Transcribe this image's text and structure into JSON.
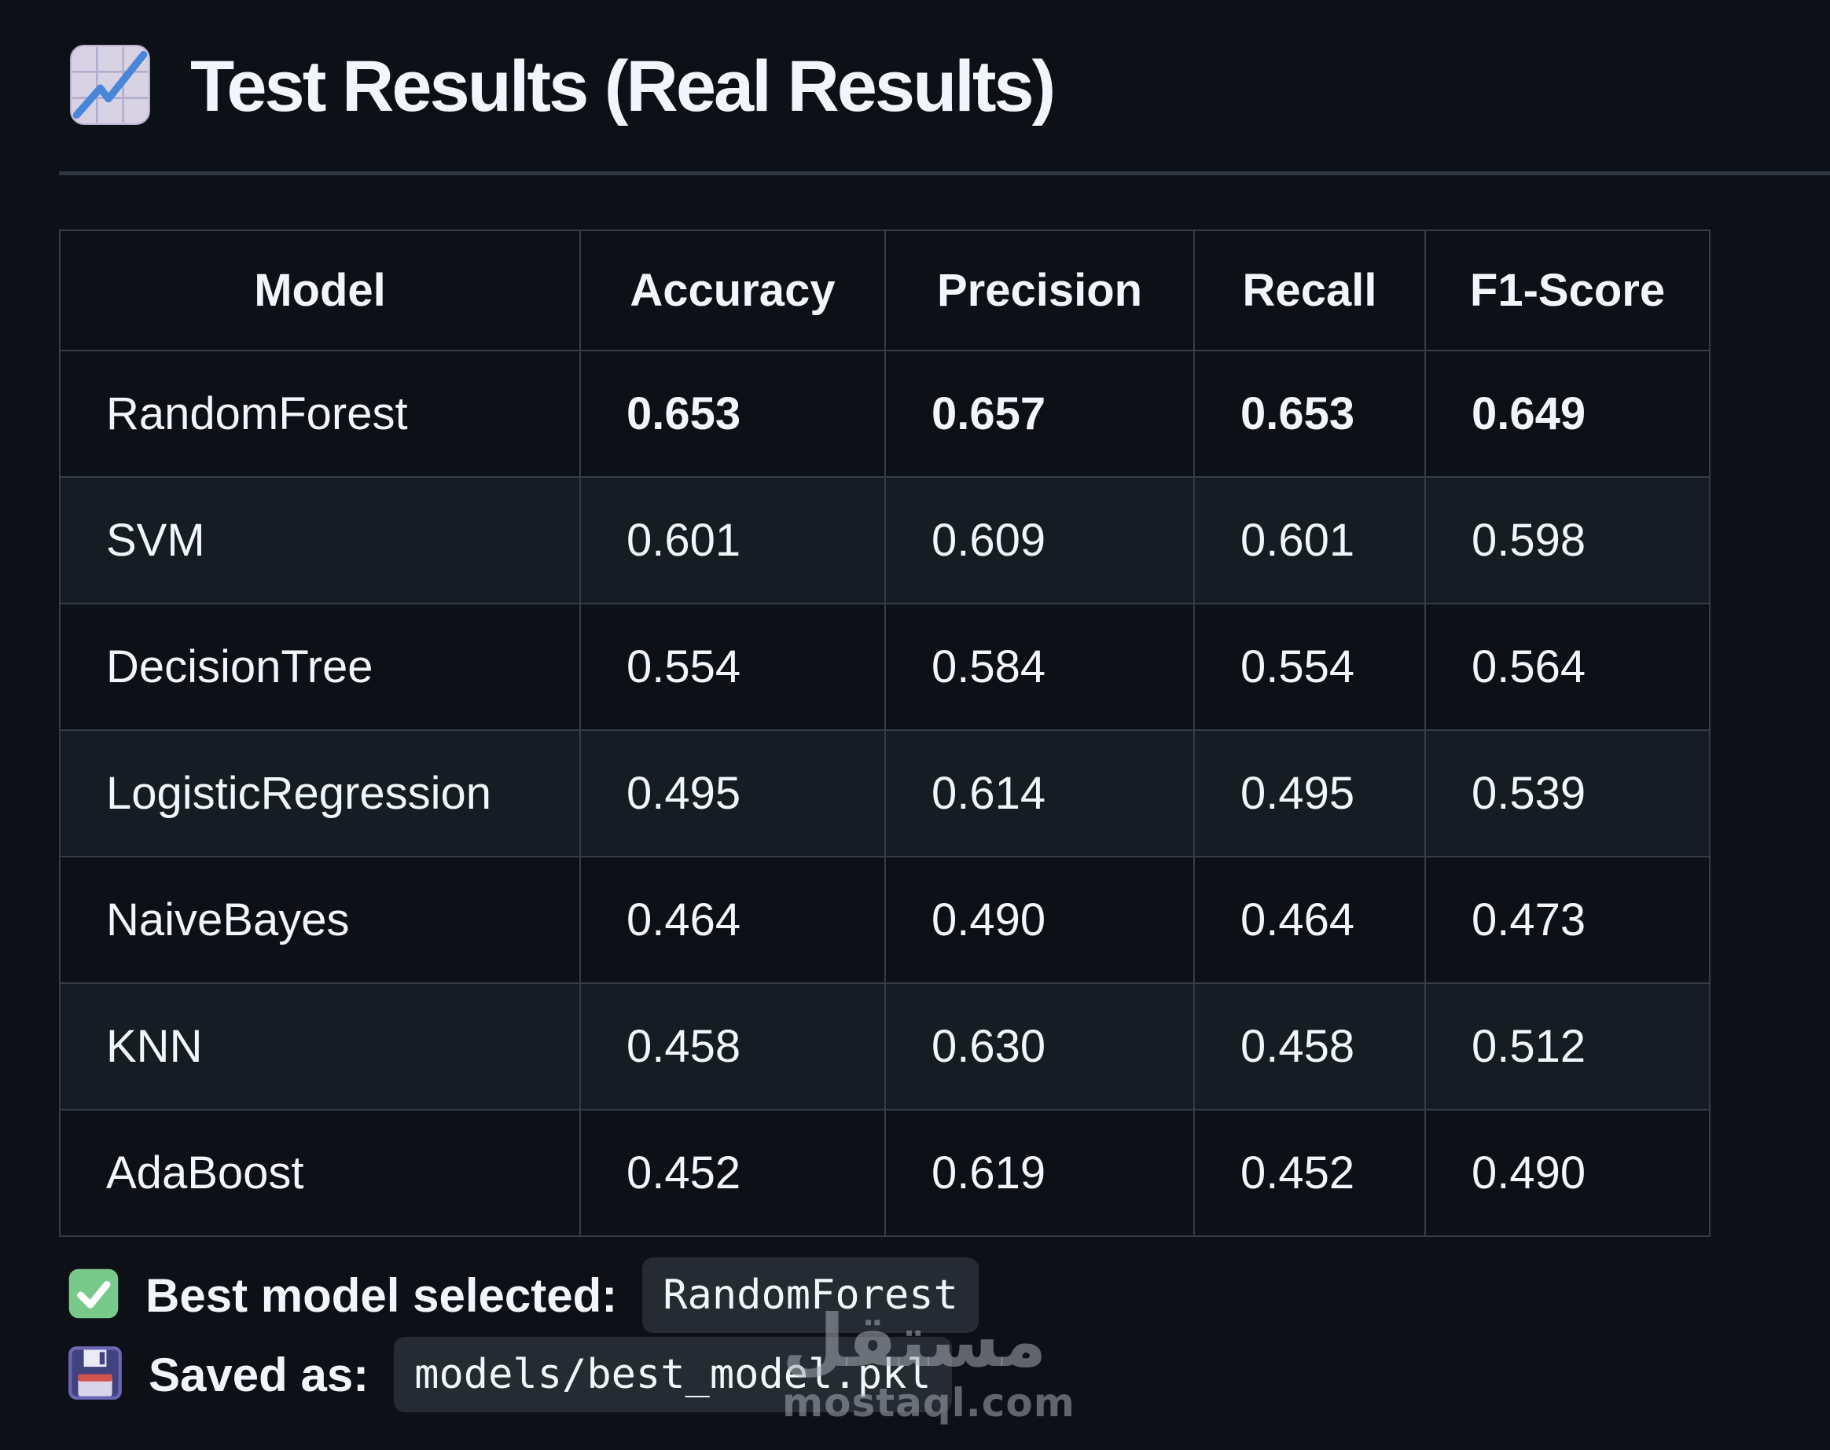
{
  "title": {
    "text": "Test Results (Real Results)",
    "icon": "chart-increasing"
  },
  "table": {
    "headers": [
      "Model",
      "Accuracy",
      "Precision",
      "Recall",
      "F1-Score"
    ],
    "rows": [
      {
        "model": "RandomForest",
        "values": [
          "0.653",
          "0.657",
          "0.653",
          "0.649"
        ],
        "emphasis": true
      },
      {
        "model": "SVM",
        "values": [
          "0.601",
          "0.609",
          "0.601",
          "0.598"
        ],
        "emphasis": false
      },
      {
        "model": "DecisionTree",
        "values": [
          "0.554",
          "0.584",
          "0.554",
          "0.564"
        ],
        "emphasis": false
      },
      {
        "model": "LogisticRegression",
        "values": [
          "0.495",
          "0.614",
          "0.495",
          "0.539"
        ],
        "emphasis": false
      },
      {
        "model": "NaiveBayes",
        "values": [
          "0.464",
          "0.490",
          "0.464",
          "0.473"
        ],
        "emphasis": false
      },
      {
        "model": "KNN",
        "values": [
          "0.458",
          "0.630",
          "0.458",
          "0.512"
        ],
        "emphasis": false
      },
      {
        "model": "AdaBoost",
        "values": [
          "0.452",
          "0.619",
          "0.452",
          "0.490"
        ],
        "emphasis": false
      }
    ]
  },
  "status": {
    "best_model_label": "Best model selected:",
    "best_model_value": "RandomForest",
    "saved_as_label": "Saved as:",
    "saved_as_value": "models/best_model.pkl"
  },
  "watermark": {
    "arabic": "مستقل",
    "domain": "mostaql.com"
  },
  "colors": {
    "background": "#0d1117",
    "row_alternate": "#161c23",
    "table_border": "#353c46",
    "text": "#f0f6fc",
    "code_chip_background": "#262b33",
    "check_green": "#79c98b",
    "floppy_purple": "#42427e",
    "chart_emoji_lavender": "#d7d3e4",
    "chart_emoji_line_blue": "#4a86d8",
    "watermark_gray": "rgba(165,171,178,0.55)"
  }
}
